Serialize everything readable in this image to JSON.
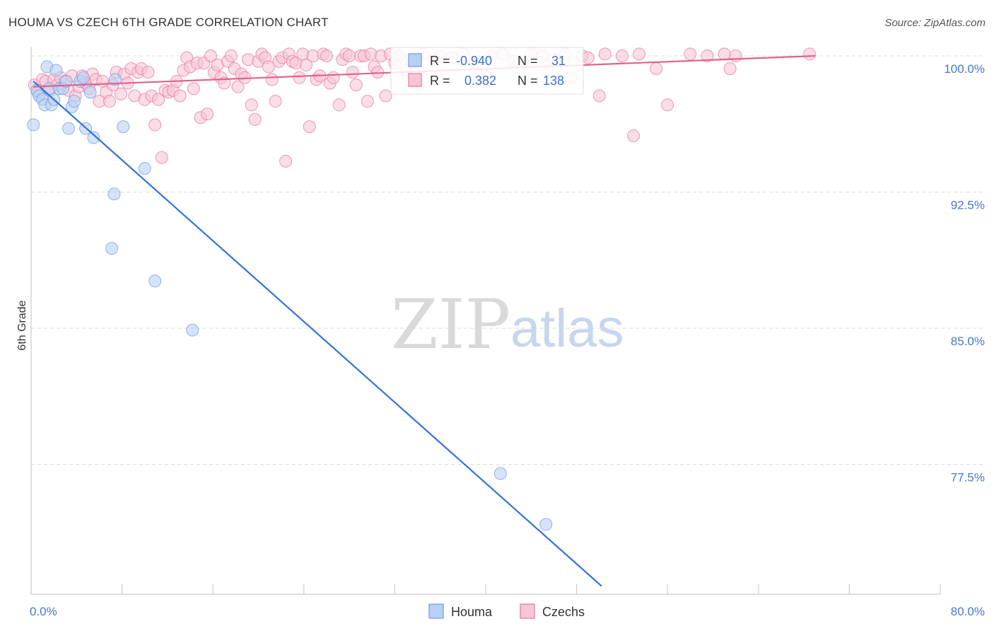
{
  "title": "HOUMA VS CZECH 6TH GRADE CORRELATION CHART",
  "source": "Source: ZipAtlas.com",
  "watermark": {
    "left": "ZIP",
    "right": "atlas"
  },
  "chart_data": {
    "type": "scatter",
    "title": "HOUMA VS CZECH 6TH GRADE CORRELATION CHART",
    "ylabel": "6th Grade",
    "xlabel": "",
    "xlim": [
      0,
      80
    ],
    "ylim": [
      70.8,
      100.8
    ],
    "x_tick_labels": [
      "0.0%",
      "80.0%"
    ],
    "y_ticks": [
      77.5,
      85.0,
      92.5,
      100.0
    ],
    "y_tick_labels": [
      "77.5%",
      "85.0%",
      "92.5%",
      "100.0%"
    ],
    "grid": "horizontal dashed",
    "legend_position": "bottom-center",
    "stats_box": [
      {
        "series": "Houma",
        "r_label": "R =",
        "r": "-0.940",
        "n_label": "N =",
        "n": "31"
      },
      {
        "series": "Czechs",
        "r_label": "R =",
        "r": "0.382",
        "n_label": "N =",
        "n": "138"
      }
    ],
    "series": [
      {
        "name": "Houma",
        "color": "#6d9be3",
        "fill": "#b9d0f5",
        "trend": {
          "x": [
            0.2,
            50.2
          ],
          "y": [
            98.6,
            70.8
          ],
          "color": "#2f73d6"
        },
        "points": [
          [
            0.2,
            96.2
          ],
          [
            0.5,
            98.1
          ],
          [
            0.7,
            97.8
          ],
          [
            1.0,
            97.6
          ],
          [
            1.2,
            97.3
          ],
          [
            1.4,
            99.4
          ],
          [
            1.6,
            98.2
          ],
          [
            1.8,
            97.3
          ],
          [
            2.0,
            97.6
          ],
          [
            2.2,
            99.2
          ],
          [
            2.5,
            98.2
          ],
          [
            2.8,
            98.2
          ],
          [
            3.1,
            98.6
          ],
          [
            3.3,
            96.0
          ],
          [
            3.6,
            97.2
          ],
          [
            3.8,
            97.5
          ],
          [
            4.3,
            98.6
          ],
          [
            4.6,
            98.8
          ],
          [
            4.8,
            96.0
          ],
          [
            5.2,
            98.0
          ],
          [
            5.5,
            95.5
          ],
          [
            7.3,
            92.4
          ],
          [
            7.4,
            98.7
          ],
          [
            7.1,
            89.4
          ],
          [
            8.1,
            96.1
          ],
          [
            10.0,
            93.8
          ],
          [
            10.9,
            87.6
          ],
          [
            14.2,
            84.9
          ],
          [
            41.3,
            77.0
          ],
          [
            45.3,
            74.2
          ],
          [
            33.9,
            99.9
          ]
        ]
      },
      {
        "name": "Czechs",
        "color": "#e8779b",
        "fill": "#f7c6d5",
        "trend": {
          "x": [
            0.2,
            69.0
          ],
          "y": [
            98.3,
            100.0
          ],
          "color": "#e0628d"
        },
        "points": [
          [
            0.3,
            98.4
          ],
          [
            0.6,
            98.0
          ],
          [
            1.0,
            98.7
          ],
          [
            1.3,
            98.6
          ],
          [
            1.6,
            98.1
          ],
          [
            2.0,
            98.7
          ],
          [
            2.3,
            98.4
          ],
          [
            2.6,
            98.8
          ],
          [
            3.0,
            98.6
          ],
          [
            3.3,
            98.1
          ],
          [
            3.6,
            98.9
          ],
          [
            3.9,
            97.8
          ],
          [
            4.2,
            98.3
          ],
          [
            4.5,
            98.9
          ],
          [
            4.8,
            98.5
          ],
          [
            5.1,
            98.2
          ],
          [
            5.4,
            99.0
          ],
          [
            5.7,
            98.7
          ],
          [
            6.0,
            97.5
          ],
          [
            6.3,
            98.6
          ],
          [
            6.6,
            98.0
          ],
          [
            6.9,
            97.5
          ],
          [
            7.2,
            98.4
          ],
          [
            7.5,
            99.1
          ],
          [
            7.9,
            97.9
          ],
          [
            8.2,
            99.0
          ],
          [
            8.5,
            98.5
          ],
          [
            8.8,
            99.3
          ],
          [
            9.1,
            97.8
          ],
          [
            9.4,
            99.1
          ],
          [
            9.7,
            99.3
          ],
          [
            10.0,
            97.6
          ],
          [
            10.3,
            99.1
          ],
          [
            10.6,
            97.8
          ],
          [
            10.9,
            96.2
          ],
          [
            11.2,
            97.6
          ],
          [
            11.5,
            94.4
          ],
          [
            11.8,
            98.1
          ],
          [
            12.1,
            98.0
          ],
          [
            12.5,
            98.1
          ],
          [
            12.8,
            98.6
          ],
          [
            13.1,
            97.8
          ],
          [
            13.4,
            99.2
          ],
          [
            13.7,
            99.9
          ],
          [
            14.0,
            99.4
          ],
          [
            14.3,
            98.2
          ],
          [
            14.6,
            99.6
          ],
          [
            14.9,
            96.6
          ],
          [
            15.2,
            99.6
          ],
          [
            15.5,
            96.8
          ],
          [
            15.8,
            100.0
          ],
          [
            16.1,
            99.1
          ],
          [
            16.4,
            99.5
          ],
          [
            16.7,
            98.8
          ],
          [
            17.0,
            98.5
          ],
          [
            17.3,
            99.7
          ],
          [
            17.6,
            100.0
          ],
          [
            17.9,
            99.3
          ],
          [
            18.2,
            98.3
          ],
          [
            18.5,
            99.0
          ],
          [
            18.8,
            98.8
          ],
          [
            19.1,
            99.8
          ],
          [
            19.4,
            97.3
          ],
          [
            19.7,
            96.5
          ],
          [
            20.0,
            99.7
          ],
          [
            20.3,
            100.1
          ],
          [
            20.6,
            99.9
          ],
          [
            20.9,
            99.4
          ],
          [
            21.2,
            98.7
          ],
          [
            21.5,
            97.5
          ],
          [
            21.8,
            99.7
          ],
          [
            22.1,
            99.9
          ],
          [
            22.4,
            94.2
          ],
          [
            22.7,
            100.1
          ],
          [
            23.0,
            99.7
          ],
          [
            23.3,
            99.6
          ],
          [
            23.6,
            98.8
          ],
          [
            23.9,
            100.1
          ],
          [
            24.2,
            99.5
          ],
          [
            24.5,
            96.1
          ],
          [
            24.8,
            100.0
          ],
          [
            25.1,
            98.7
          ],
          [
            25.4,
            98.9
          ],
          [
            25.7,
            100.1
          ],
          [
            26.0,
            100.0
          ],
          [
            26.3,
            98.5
          ],
          [
            26.6,
            98.8
          ],
          [
            27.1,
            97.3
          ],
          [
            27.4,
            99.8
          ],
          [
            27.7,
            100.1
          ],
          [
            28.0,
            100.0
          ],
          [
            28.3,
            99.1
          ],
          [
            28.6,
            98.4
          ],
          [
            29.0,
            100.0
          ],
          [
            29.3,
            100.0
          ],
          [
            29.6,
            97.5
          ],
          [
            29.9,
            100.1
          ],
          [
            30.2,
            99.4
          ],
          [
            30.5,
            99.1
          ],
          [
            30.8,
            100.0
          ],
          [
            31.2,
            97.8
          ],
          [
            31.6,
            100.1
          ],
          [
            32.0,
            99.6
          ],
          [
            32.4,
            100.0
          ],
          [
            33.0,
            99.2
          ],
          [
            33.5,
            99.6
          ],
          [
            34.0,
            98.4
          ],
          [
            34.5,
            100.1
          ],
          [
            35.5,
            99.8
          ],
          [
            36.0,
            100.0
          ],
          [
            37.0,
            99.9
          ],
          [
            38.0,
            100.1
          ],
          [
            39.0,
            99.6
          ],
          [
            40.0,
            98.9
          ],
          [
            40.5,
            100.0
          ],
          [
            41.5,
            100.1
          ],
          [
            42.5,
            99.7
          ],
          [
            44.0,
            100.1
          ],
          [
            45.0,
            100.0
          ],
          [
            46.0,
            99.8
          ],
          [
            47.0,
            100.1
          ],
          [
            47.5,
            98.8
          ],
          [
            48.5,
            100.0
          ],
          [
            49.0,
            99.9
          ],
          [
            50.0,
            97.8
          ],
          [
            50.5,
            100.1
          ],
          [
            52.0,
            100.0
          ],
          [
            53.0,
            95.6
          ],
          [
            53.5,
            100.1
          ],
          [
            55.0,
            99.3
          ],
          [
            56.0,
            97.3
          ],
          [
            58.0,
            100.1
          ],
          [
            59.5,
            100.0
          ],
          [
            61.0,
            100.1
          ],
          [
            61.5,
            99.3
          ],
          [
            62.0,
            100.0
          ],
          [
            68.5,
            100.1
          ]
        ]
      }
    ]
  },
  "legend": [
    {
      "label": "Houma"
    },
    {
      "label": "Czechs"
    }
  ]
}
